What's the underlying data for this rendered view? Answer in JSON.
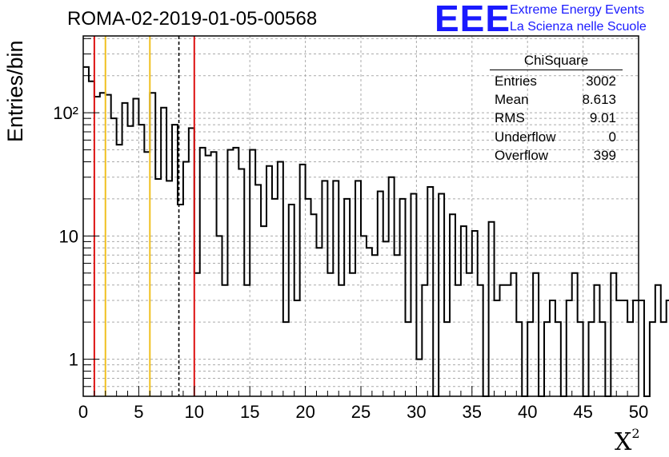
{
  "title": "ROMA-02-2019-01-05-00568",
  "logo": {
    "text": "EEE",
    "line1": "Extreme Energy Events",
    "line2": "La Scienza nelle Scuole"
  },
  "colors": {
    "axis": "#000000",
    "histogram": "#000000",
    "grid": "#aaaaaa",
    "red_line": "#dd1111",
    "yellow_line": "#f0c020",
    "dashed_line": "#000000",
    "logo": "#1a1aff"
  },
  "stats": {
    "name": "ChiSquare",
    "rows": [
      {
        "label": "Entries",
        "value": "3002"
      },
      {
        "label": "Mean",
        "value": "8.613"
      },
      {
        "label": "RMS",
        "value": "9.01"
      },
      {
        "label": "Underflow",
        "value": "0"
      },
      {
        "label": "Overflow",
        "value": "399"
      }
    ]
  },
  "chart_data": {
    "type": "bar",
    "histogram": true,
    "title": "ROMA-02-2019-01-05-00568",
    "xlabel": "X²",
    "ylabel": "Entries/bin",
    "xlim": [
      0,
      50
    ],
    "ylim": [
      0.5,
      420
    ],
    "yscale": "log",
    "grid": true,
    "bin_width": 0.5,
    "x_ticks": [
      0,
      5,
      10,
      15,
      20,
      25,
      30,
      35,
      40,
      45,
      50
    ],
    "y_ticks": [
      {
        "value": 1,
        "label": "1"
      },
      {
        "value": 10,
        "label": "10"
      },
      {
        "value": 100,
        "label": "10²"
      }
    ],
    "values": [
      235,
      180,
      135,
      145,
      140,
      90,
      55,
      120,
      78,
      130,
      80,
      48,
      145,
      29,
      110,
      28,
      80,
      18,
      40,
      75,
      5,
      52,
      45,
      48,
      10,
      4,
      50,
      52,
      35,
      4,
      50,
      26,
      12,
      37,
      20,
      40,
      2,
      18,
      3,
      38,
      20,
      15,
      8,
      28,
      5,
      28,
      4,
      20,
      5,
      28,
      10,
      8,
      7,
      23,
      9,
      30,
      7,
      20,
      2,
      22,
      1,
      4,
      25,
      0.4,
      22,
      2,
      15,
      4,
      12,
      5,
      11,
      4,
      0.4,
      13,
      3,
      4,
      4,
      5,
      2,
      0.4,
      2,
      5,
      0.4,
      2,
      3,
      2,
      0.4,
      3,
      5,
      2,
      0.4,
      2,
      4,
      2,
      0.4,
      5,
      3,
      3,
      2,
      3,
      3,
      0.4,
      2,
      4,
      2,
      3,
      1,
      2,
      1,
      3,
      0.4,
      2,
      1,
      1,
      2,
      1,
      2,
      0.4,
      2,
      1,
      2,
      0.4,
      2,
      0.4,
      2,
      1,
      2,
      2
    ],
    "vertical_lines": [
      {
        "x": 1.0,
        "style": "red"
      },
      {
        "x": 2.0,
        "style": "yellow"
      },
      {
        "x": 6.0,
        "style": "yellow"
      },
      {
        "x": 8.613,
        "style": "dashed"
      },
      {
        "x": 10.0,
        "style": "red"
      }
    ]
  }
}
